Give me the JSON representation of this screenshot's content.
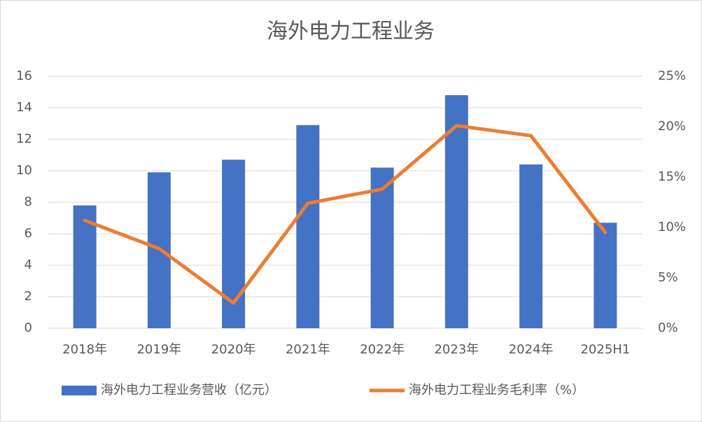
{
  "chart_data": {
    "type": "bar",
    "title": "海外电力工程业务",
    "categories": [
      "2018年",
      "2019年",
      "2020年",
      "2021年",
      "2022年",
      "2023年",
      "2024年",
      "2025H1"
    ],
    "series": [
      {
        "name": "海外电力工程业务营收（亿元）",
        "color": "#4472c4",
        "type": "bar",
        "values": [
          7.8,
          9.9,
          10.7,
          12.9,
          10.2,
          14.8,
          10.4,
          6.7
        ]
      },
      {
        "name": "海外电力工程业务毛利率（%）",
        "color": "#ed7d31",
        "type": "line",
        "axis": "y2",
        "values": [
          10.7,
          7.9,
          2.5,
          12.4,
          13.8,
          20.1,
          19.1,
          9.5
        ]
      }
    ],
    "ylim": [
      0,
      16
    ],
    "yticks": [
      0,
      2,
      4,
      6,
      8,
      10,
      12,
      14,
      16
    ],
    "y2lim": [
      0,
      25
    ],
    "y2ticks": [
      {
        "value": 0,
        "label": "0%"
      },
      {
        "value": 5,
        "label": "5%"
      },
      {
        "value": 10,
        "label": "10%"
      },
      {
        "value": 15,
        "label": "15%"
      },
      {
        "value": 20,
        "label": "20%"
      },
      {
        "value": 25,
        "label": "25%"
      }
    ],
    "grid": true,
    "legend": "bottom"
  }
}
